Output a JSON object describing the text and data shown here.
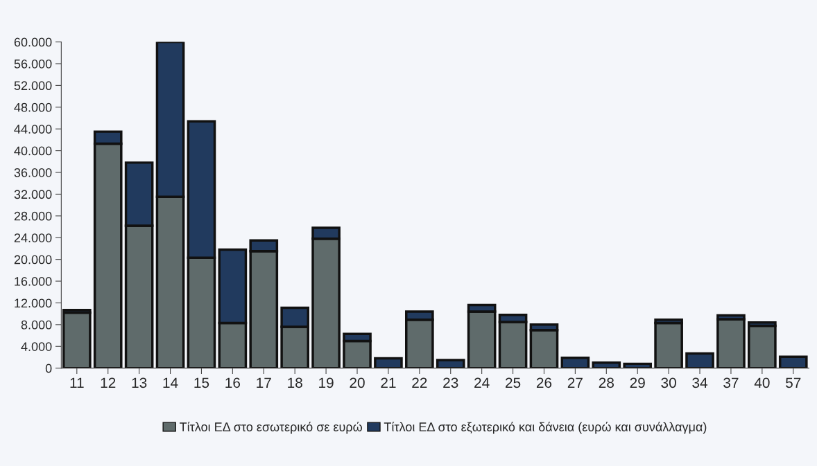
{
  "chart_data": {
    "type": "bar",
    "stacked": true,
    "categories": [
      "11",
      "12",
      "13",
      "14",
      "15",
      "16",
      "17",
      "18",
      "19",
      "20",
      "21",
      "22",
      "23",
      "24",
      "25",
      "26",
      "27",
      "28",
      "29",
      "30",
      "34",
      "37",
      "40",
      "57"
    ],
    "series": [
      {
        "name": "Τίτλοι ΕΔ στο εσωτερικό σε ευρώ",
        "color": "#5f6b6b",
        "values": [
          10200,
          41300,
          26200,
          31500,
          20300,
          8300,
          21500,
          7600,
          23800,
          5000,
          null,
          8900,
          null,
          10400,
          8500,
          7000,
          null,
          null,
          null,
          8300,
          null,
          9000,
          7800,
          null
        ]
      },
      {
        "name": "Τίτλοι ΕΔ στο εξωτερικό και δάνεια (ευρώ και συνάλλαγμα)",
        "color": "#213a5e",
        "values": [
          500,
          2200,
          11600,
          28500,
          25100,
          13500,
          2000,
          3500,
          2000,
          1300,
          1800,
          1500,
          1500,
          1200,
          1300,
          1000,
          1900,
          1000,
          800,
          600,
          2700,
          700,
          600,
          2100
        ]
      }
    ],
    "ylim": [
      0,
      60000
    ],
    "yticks": [
      {
        "value": 0,
        "label": "0"
      },
      {
        "value": 4000,
        "label": "4.000"
      },
      {
        "value": 8000,
        "label": "8.000"
      },
      {
        "value": 12000,
        "label": "12.000"
      },
      {
        "value": 16000,
        "label": "16.000"
      },
      {
        "value": 20000,
        "label": "20.000"
      },
      {
        "value": 24000,
        "label": "24.000"
      },
      {
        "value": 28000,
        "label": "28.000"
      },
      {
        "value": 32000,
        "label": "32.000"
      },
      {
        "value": 36000,
        "label": "36.000"
      },
      {
        "value": 40000,
        "label": "40.000"
      },
      {
        "value": 44000,
        "label": "44.000"
      },
      {
        "value": 48000,
        "label": "48.000"
      },
      {
        "value": 52000,
        "label": "52.000"
      },
      {
        "value": 56000,
        "label": "56.000"
      },
      {
        "value": 60000,
        "label": "60.000"
      }
    ],
    "grid": false,
    "legend": "bottom"
  }
}
